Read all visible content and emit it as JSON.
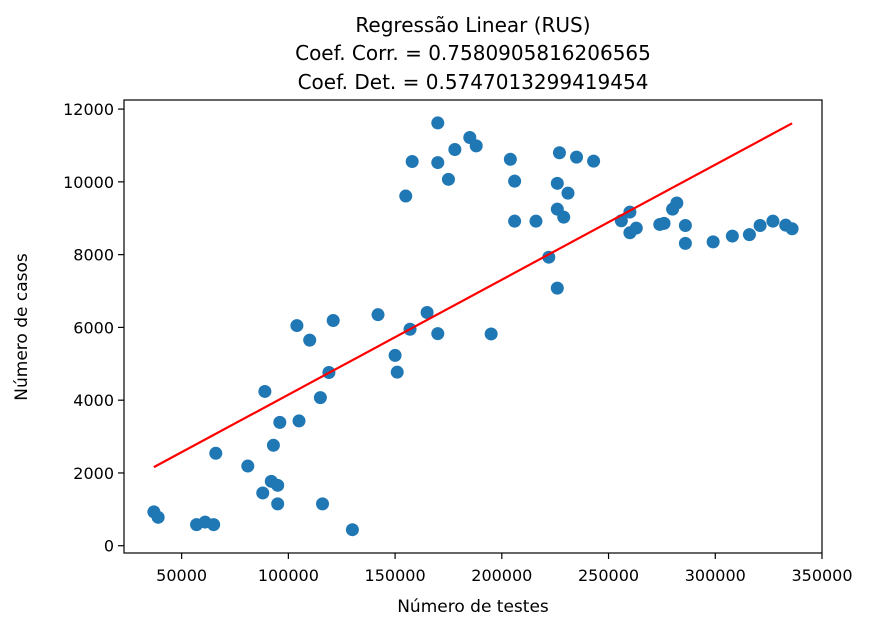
{
  "chart_data": {
    "type": "scatter",
    "title": [
      "Regressão Linear (RUS)",
      "Coef. Corr. = 0.7580905816206565",
      "Coef. Det. = 0.5747013299419454"
    ],
    "xlabel": "Número de testes",
    "ylabel": "Número de casos",
    "xlim": [
      23000,
      350000
    ],
    "ylim": [
      -200,
      12250
    ],
    "xticks": [
      50000,
      100000,
      150000,
      200000,
      250000,
      300000,
      350000
    ],
    "yticks": [
      0,
      2000,
      4000,
      6000,
      8000,
      10000,
      12000
    ],
    "grid": false,
    "points": {
      "color": "#1f77b4",
      "x": [
        37000,
        39000,
        57000,
        61000,
        65000,
        66000,
        81000,
        88000,
        89000,
        92000,
        93000,
        95000,
        95000,
        96000,
        104000,
        105000,
        110000,
        115000,
        116000,
        119000,
        121000,
        130000,
        142000,
        150000,
        151000,
        155000,
        157000,
        158000,
        165000,
        170000,
        170000,
        170000,
        175000,
        178000,
        185000,
        188000,
        195000,
        204000,
        206000,
        206000,
        216000,
        222000,
        226000,
        226000,
        226000,
        227000,
        229000,
        231000,
        235000,
        243000,
        256000,
        260000,
        260000,
        263000,
        274000,
        276000,
        280000,
        282000,
        286000,
        286000,
        299000,
        308000,
        316000,
        321000,
        327000,
        333000,
        336000
      ],
      "y": [
        930,
        780,
        580,
        650,
        580,
        2540,
        2190,
        1450,
        4240,
        1770,
        2760,
        1660,
        1150,
        3390,
        6050,
        3430,
        5650,
        4070,
        1150,
        4760,
        6190,
        440,
        6350,
        5230,
        4770,
        9610,
        5950,
        10560,
        6410,
        11620,
        10530,
        5830,
        10070,
        10890,
        11220,
        10990,
        5820,
        10620,
        10020,
        8920,
        8920,
        7930,
        7080,
        9960,
        9250,
        10800,
        9030,
        9690,
        10680,
        10570,
        8930,
        8600,
        9170,
        8730,
        8830,
        8860,
        9250,
        9420,
        8310,
        8800,
        8350,
        8510,
        8550,
        8800,
        8920,
        8810,
        8710
      ]
    },
    "regression_line": {
      "color": "#ff0000",
      "x": [
        37000,
        336000
      ],
      "y": [
        2160,
        11610
      ]
    }
  }
}
